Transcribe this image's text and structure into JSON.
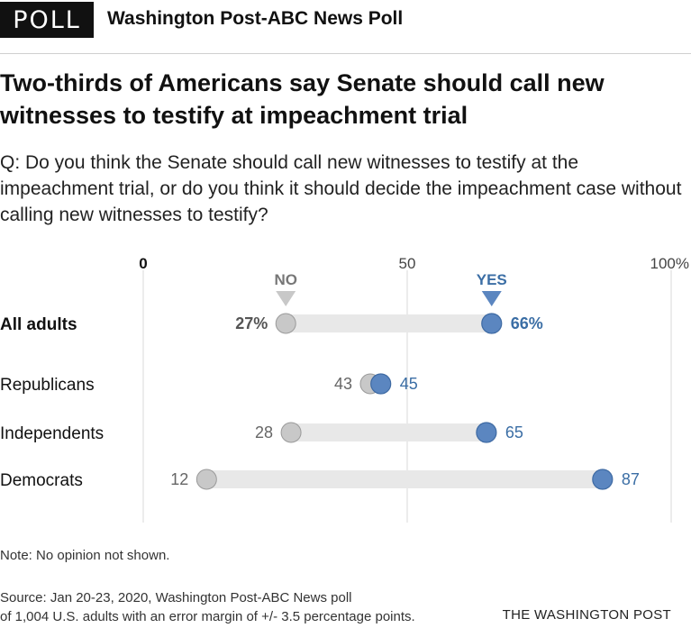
{
  "header": {
    "tag": "POLL",
    "poll_name": "Washington Post-ABC News Poll"
  },
  "headline": "Two-thirds of Americans say Senate should call new witnesses to testify at impeachment trial",
  "question": "Q: Do you think the Senate should call new witnesses to testify at the impeachment trial, or do you think it should decide the impeachment case without calling new witnesses to testify?",
  "chart_data": {
    "type": "dot",
    "x_ticks": [
      {
        "value": 0,
        "label": "0"
      },
      {
        "value": 50,
        "label": "50"
      },
      {
        "value": 100,
        "label": "100%"
      }
    ],
    "xlim": [
      0,
      100
    ],
    "grid": true,
    "series": [
      {
        "name": "NO",
        "color": "#c8c8c8"
      },
      {
        "name": "YES",
        "color": "#5b86c0"
      }
    ],
    "categories": [
      "All adults",
      "Republicans",
      "Independents",
      "Democrats"
    ],
    "rows": [
      {
        "label": "All adults",
        "no": 27,
        "yes": 66,
        "no_label": "27%",
        "yes_label": "66%",
        "bold": true
      },
      {
        "label": "Republicans",
        "no": 43,
        "yes": 45,
        "no_label": "43",
        "yes_label": "45",
        "bold": false
      },
      {
        "label": "Independents",
        "no": 28,
        "yes": 65,
        "no_label": "28",
        "yes_label": "65",
        "bold": false
      },
      {
        "label": "Democrats",
        "no": 12,
        "yes": 87,
        "no_label": "12",
        "yes_label": "87",
        "bold": false
      }
    ],
    "colors": {
      "no": "#c8c8c8",
      "no_label": "#666666",
      "yes": "#5b86c0",
      "yes_label": "#3b6ea5",
      "connector": "#e8e8e8"
    }
  },
  "note": "Note: No opinion not shown.",
  "source_line1": "Source: Jan 20-23, 2020, Washington Post-ABC News poll",
  "source_line2": "of 1,004 U.S. adults with an error margin of +/- 3.5 percentage points.",
  "credit": "THE WASHINGTON POST"
}
